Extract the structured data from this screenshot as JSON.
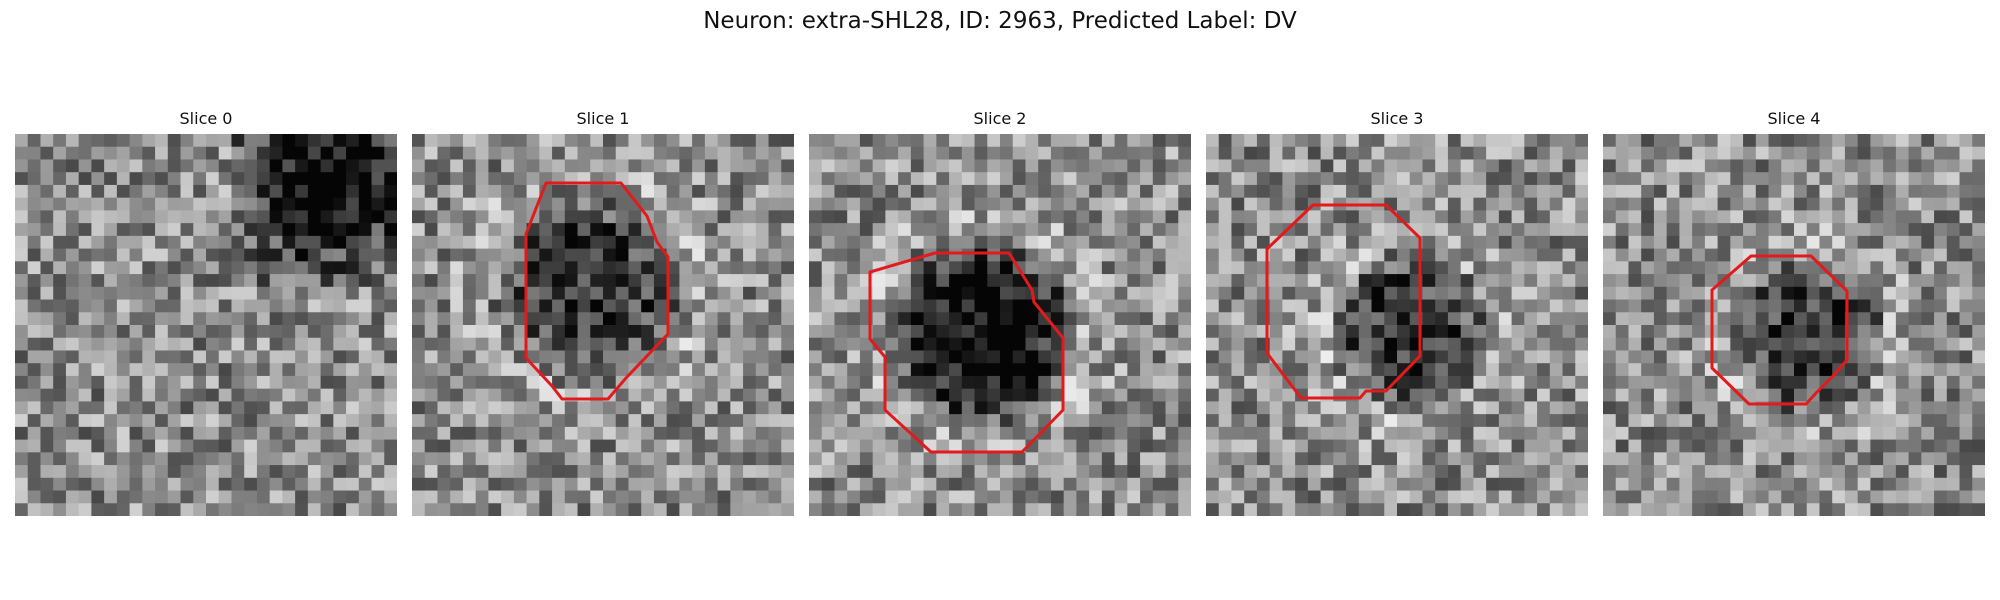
{
  "figure": {
    "title": "Neuron: extra-SHL28, ID: 2963, Predicted Label: DV",
    "outline_color": "#e31a1c"
  },
  "slices": [
    {
      "title": "Slice 0",
      "has_outline": false
    },
    {
      "title": "Slice 1",
      "has_outline": true
    },
    {
      "title": "Slice 2",
      "has_outline": true
    },
    {
      "title": "Slice 3",
      "has_outline": true
    },
    {
      "title": "Slice 4",
      "has_outline": true
    }
  ]
}
